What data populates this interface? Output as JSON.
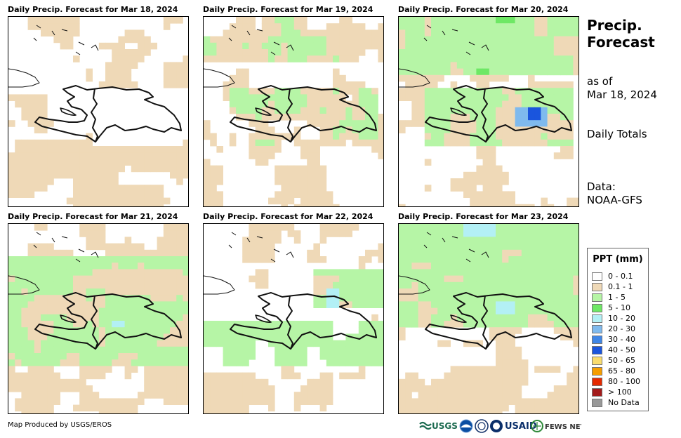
{
  "panels": [
    {
      "title": "Daily Precip. Forecast for Mar 18, 2024",
      "pattern": 0
    },
    {
      "title": "Daily Precip. Forecast for Mar 19, 2024",
      "pattern": 1
    },
    {
      "title": "Daily Precip. Forecast for Mar 20, 2024",
      "pattern": 2
    },
    {
      "title": "Daily Precip. Forecast for Mar 21, 2024",
      "pattern": 3
    },
    {
      "title": "Daily Precip. Forecast for Mar 22, 2024",
      "pattern": 4
    },
    {
      "title": "Daily Precip. Forecast for Mar 23, 2024",
      "pattern": 5
    }
  ],
  "side": {
    "title_line1": "Precip.",
    "title_line2": "Forecast",
    "asof_line1": "as of",
    "asof_line2": "Mar 18, 2024",
    "totals": "Daily Totals",
    "data_line1": "Data:",
    "data_line2": "NOAA-GFS"
  },
  "legend": {
    "title": "PPT (mm)",
    "items": [
      {
        "label": "0 - 0.1",
        "color": "#ffffff"
      },
      {
        "label": "0.1 - 1",
        "color": "#efd9b7"
      },
      {
        "label": "1 - 5",
        "color": "#b6f5a6"
      },
      {
        "label": "5 - 10",
        "color": "#6ee865"
      },
      {
        "label": "10 - 20",
        "color": "#b3f0f5"
      },
      {
        "label": "20 - 30",
        "color": "#7fbaee"
      },
      {
        "label": "30 - 40",
        "color": "#3f86e6"
      },
      {
        "label": "40 - 50",
        "color": "#1a55dd"
      },
      {
        "label": "50 - 65",
        "color": "#f9dc6e"
      },
      {
        "label": "65 - 80",
        "color": "#f59d00"
      },
      {
        "label": "80 - 100",
        "color": "#e52a00"
      },
      {
        "label": "> 100",
        "color": "#a31b1b"
      },
      {
        "label": "No Data",
        "color": "#999999"
      }
    ]
  },
  "footer": {
    "credit": "Map Produced by USGS/EROS",
    "logo_usgs": "USGS",
    "logo_usaid": "USAID",
    "logo_fews": "FEWS NET"
  }
}
